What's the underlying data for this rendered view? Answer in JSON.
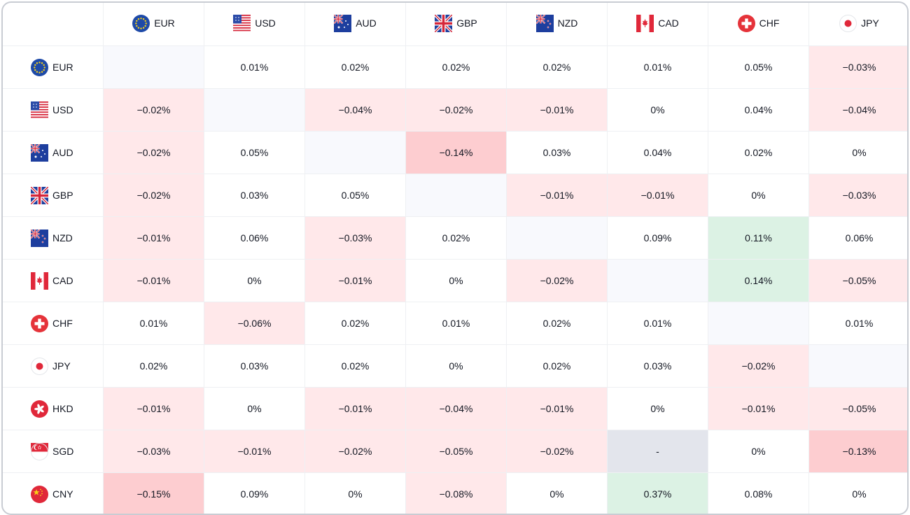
{
  "columns": [
    {
      "code": "EUR",
      "flag": "eu-flag-icon"
    },
    {
      "code": "USD",
      "flag": "us-flag-icon"
    },
    {
      "code": "AUD",
      "flag": "au-flag-icon"
    },
    {
      "code": "GBP",
      "flag": "gb-flag-icon"
    },
    {
      "code": "NZD",
      "flag": "nz-flag-icon"
    },
    {
      "code": "CAD",
      "flag": "ca-flag-icon"
    },
    {
      "code": "CHF",
      "flag": "ch-flag-icon"
    },
    {
      "code": "JPY",
      "flag": "jp-flag-icon"
    }
  ],
  "rows": [
    {
      "code": "EUR",
      "flag": "eu-flag-icon",
      "cells": [
        "",
        "0.01%",
        "0.02%",
        "0.02%",
        "0.02%",
        "0.01%",
        "0.05%",
        "−0.03%"
      ]
    },
    {
      "code": "USD",
      "flag": "us-flag-icon",
      "cells": [
        "−0.02%",
        "",
        "−0.04%",
        "−0.02%",
        "−0.01%",
        "0%",
        "0.04%",
        "−0.04%"
      ]
    },
    {
      "code": "AUD",
      "flag": "au-flag-icon",
      "cells": [
        "−0.02%",
        "0.05%",
        "",
        "−0.14%",
        "0.03%",
        "0.04%",
        "0.02%",
        "0%"
      ]
    },
    {
      "code": "GBP",
      "flag": "gb-flag-icon",
      "cells": [
        "−0.02%",
        "0.03%",
        "0.05%",
        "",
        "−0.01%",
        "−0.01%",
        "0%",
        "−0.03%"
      ]
    },
    {
      "code": "NZD",
      "flag": "nz-flag-icon",
      "cells": [
        "−0.01%",
        "0.06%",
        "−0.03%",
        "0.02%",
        "",
        "0.09%",
        "0.11%",
        "0.06%"
      ]
    },
    {
      "code": "CAD",
      "flag": "ca-flag-icon",
      "cells": [
        "−0.01%",
        "0%",
        "−0.01%",
        "0%",
        "−0.02%",
        "",
        "0.14%",
        "−0.05%"
      ]
    },
    {
      "code": "CHF",
      "flag": "ch-flag-icon",
      "cells": [
        "0.01%",
        "−0.06%",
        "0.02%",
        "0.01%",
        "0.02%",
        "0.01%",
        "",
        "0.01%"
      ]
    },
    {
      "code": "JPY",
      "flag": "jp-flag-icon",
      "cells": [
        "0.02%",
        "0.03%",
        "0.02%",
        "0%",
        "0.02%",
        "0.03%",
        "−0.02%",
        ""
      ]
    },
    {
      "code": "HKD",
      "flag": "hk-flag-icon",
      "cells": [
        "−0.01%",
        "0%",
        "−0.01%",
        "−0.04%",
        "−0.01%",
        "0%",
        "−0.01%",
        "−0.05%"
      ]
    },
    {
      "code": "SGD",
      "flag": "sg-flag-icon",
      "cells": [
        "−0.03%",
        "−0.01%",
        "−0.02%",
        "−0.05%",
        "−0.02%",
        "-",
        "0%",
        "−0.13%"
      ]
    },
    {
      "code": "CNY",
      "flag": "cn-flag-icon",
      "cells": [
        "−0.15%",
        "0.09%",
        "0%",
        "−0.08%",
        "0%",
        "0.37%",
        "0.08%",
        "0%"
      ]
    }
  ],
  "colors": {
    "negative_light": "#ffe8ea",
    "negative_strong": "#fdcdd0",
    "positive": "#dcf2e4",
    "diagonal": "#f8f9fd",
    "unavailable": "#e3e5ec"
  }
}
